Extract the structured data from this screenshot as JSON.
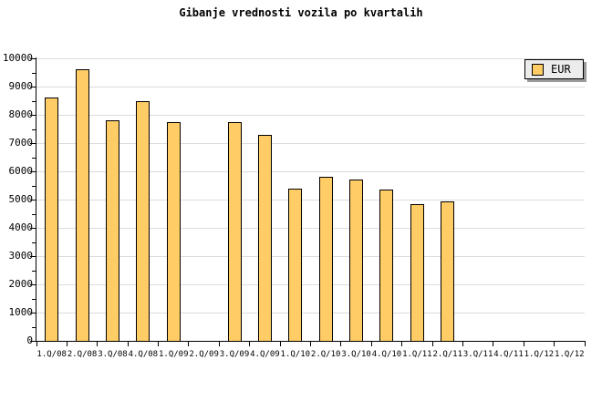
{
  "title": "Gibanje vrednosti vozila po kvartalih",
  "legend": {
    "series_label": "EUR",
    "swatch_color": "#ffcc66"
  },
  "chart_data": {
    "type": "bar",
    "title": "Gibanje vrednosti vozila po kvartalih",
    "categories": [
      "1.Q/08",
      "2.Q/08",
      "3.Q/08",
      "4.Q/08",
      "1.Q/09",
      "2.Q/09",
      "3.Q/09",
      "4.Q/09",
      "1.Q/10",
      "2.Q/10",
      "3.Q/10",
      "4.Q/10",
      "1.Q/11",
      "2.Q/11",
      "3.Q/11",
      "4.Q/11",
      "1.Q/12",
      "1.Q/12"
    ],
    "series": [
      {
        "name": "EUR",
        "values": [
          8600,
          9600,
          7800,
          8500,
          7750,
          null,
          7750,
          7300,
          5400,
          5800,
          5700,
          5350,
          4850,
          4950,
          null,
          null,
          null,
          null
        ]
      }
    ],
    "xlabel": "",
    "ylabel": "",
    "ylim": [
      0,
      10000
    ],
    "y_tick_interval": 1000,
    "y_minor_tick_interval": 500,
    "y_tick_labels": [
      "0",
      "1000",
      "2000",
      "3000",
      "4000",
      "5000",
      "6000",
      "7000",
      "8000",
      "9000",
      "10000"
    ],
    "grid": true,
    "gridline_color": "#dcdcdc",
    "legend_position": "top-right",
    "bar_color": "#ffcc66",
    "bar_border_color": "#000000"
  }
}
